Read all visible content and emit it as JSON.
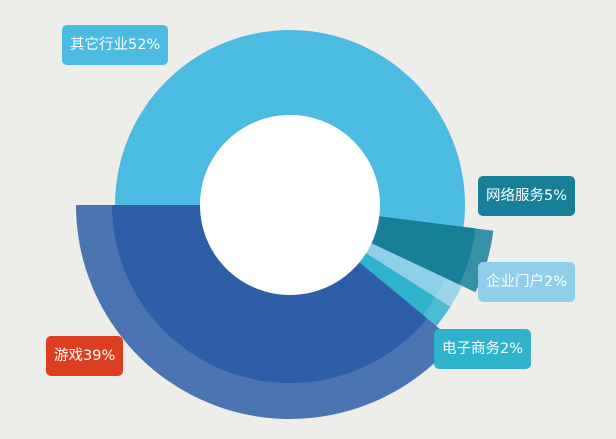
{
  "chart_data": {
    "type": "pie",
    "subtype": "donut",
    "categories": [
      "其它行业",
      "网络服务",
      "企业门户",
      "电子商务",
      "游戏"
    ],
    "values": [
      52,
      5,
      2,
      2,
      39
    ],
    "labels": [
      "其它行业52%",
      "网络服务5%",
      "企业门户2%",
      "电子商务2%",
      "游戏39%"
    ],
    "colors": {
      "其它行业": "#4bbbe2",
      "网络服务": "#187f99",
      "企业门户": "#8fcfea",
      "电子商务": "#2fb2cc",
      "游戏": "#2e5ea8"
    },
    "label_colors": {
      "其它行业": "#4bbbe2",
      "网络服务": "#187f99",
      "企业门户": "#8fcfea",
      "电子商务": "#2fb2cc",
      "游戏": "#dc3e22"
    },
    "title": "",
    "legend": "none"
  }
}
